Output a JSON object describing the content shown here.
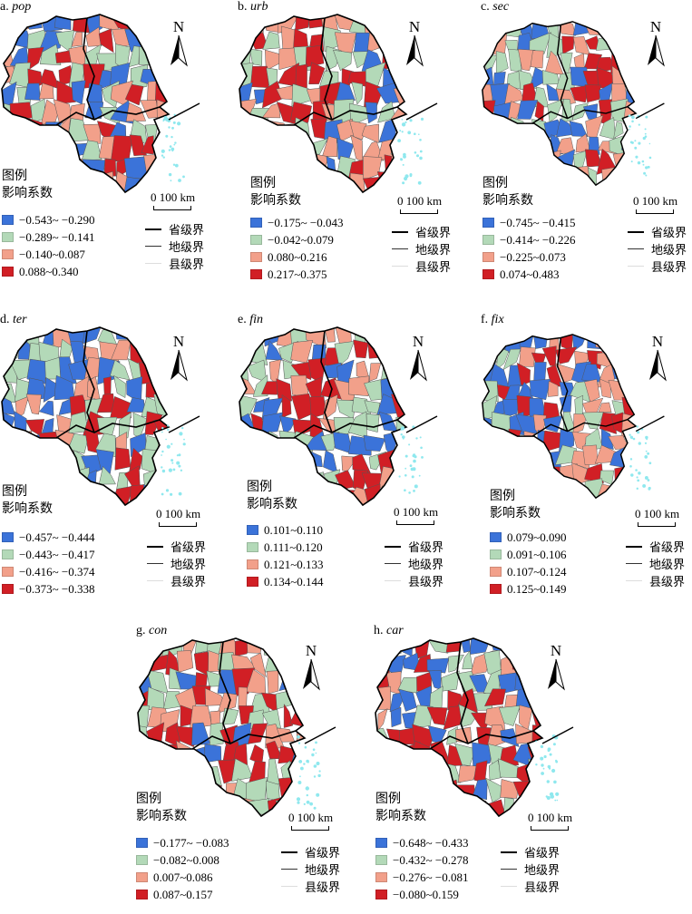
{
  "colors": {
    "c1": "#3b73d9",
    "c2": "#b3d9b8",
    "c3": "#f2a08a",
    "c4": "#d11f25"
  },
  "north_label": "N",
  "legend_title": "图例",
  "legend_subtitle": "影响系数",
  "scale_label": "0 100 km",
  "boundaries": [
    "省级界",
    "地级界",
    "县级界"
  ],
  "panels": [
    {
      "prefix": "a.",
      "var": "pop",
      "classes": [
        "−0.543~ −0.290",
        "−0.289~ −0.141",
        "−0.140~0.087",
        "0.088~0.340"
      ]
    },
    {
      "prefix": "b.",
      "var": "urb",
      "classes": [
        "−0.175~ −0.043",
        "−0.042~0.079",
        "0.080~0.216",
        "0.217~0.375"
      ]
    },
    {
      "prefix": "c.",
      "var": "sec",
      "classes": [
        "−0.745~ −0.415",
        "−0.414~ −0.226",
        "−0.225~0.073",
        "0.074~0.483"
      ]
    },
    {
      "prefix": "d.",
      "var": "ter",
      "classes": [
        "−0.457~ −0.444",
        "−0.443~ −0.417",
        "−0.416~ −0.374",
        "−0.373~ −0.338"
      ]
    },
    {
      "prefix": "e.",
      "var": "fin",
      "classes": [
        "0.101~0.110",
        "0.111~0.120",
        "0.121~0.133",
        "0.134~0.144"
      ]
    },
    {
      "prefix": "f.",
      "var": "fix",
      "classes": [
        "0.079~0.090",
        "0.091~0.106",
        "0.107~0.124",
        "0.125~0.149"
      ]
    },
    {
      "prefix": "g.",
      "var": "con",
      "classes": [
        "−0.177~ −0.083",
        "−0.082~0.008",
        "0.007~0.086",
        "0.087~0.157"
      ]
    },
    {
      "prefix": "h.",
      "var": "car",
      "classes": [
        "−0.648~ −0.433",
        "−0.432~ −0.278",
        "−0.276~ −0.081",
        "−0.080~0.159"
      ]
    }
  ]
}
